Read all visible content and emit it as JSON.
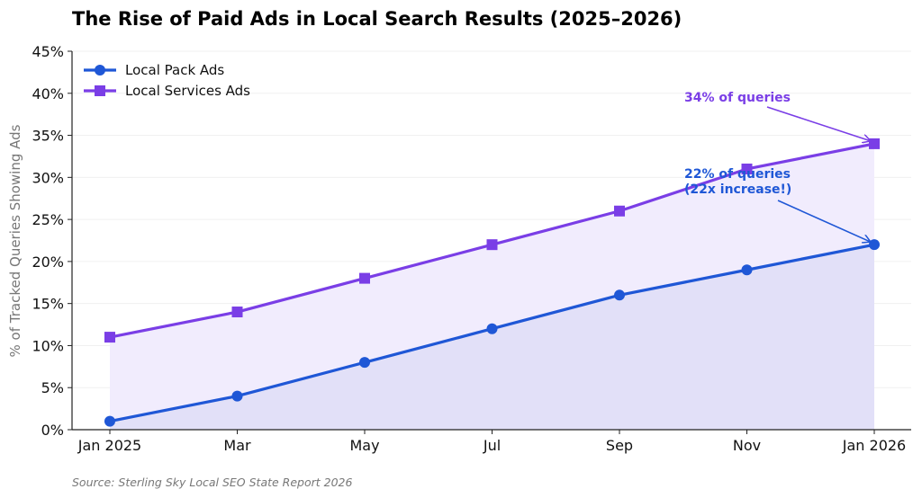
{
  "chart_data": {
    "type": "line",
    "title": "The Rise of Paid Ads in Local Search Results (2025–2026)",
    "ylabel": "% of Tracked Queries Showing Ads",
    "xlabel": "",
    "categories": [
      "Jan 2025",
      "Mar",
      "May",
      "Jul",
      "Sep",
      "Nov",
      "Jan 2026"
    ],
    "ylim": [
      0,
      45
    ],
    "yticks": [
      0,
      5,
      10,
      15,
      20,
      25,
      30,
      35,
      40,
      45
    ],
    "ytick_format": "%",
    "grid": "horizontal",
    "legend": "top-left",
    "series": [
      {
        "name": "Local Pack Ads",
        "values": [
          1,
          4,
          8,
          12,
          16,
          19,
          22
        ],
        "color": "#1f57d6",
        "marker": "circle",
        "fill": "#e2e0f8"
      },
      {
        "name": "Local Services Ads",
        "values": [
          11,
          14,
          18,
          22,
          26,
          31,
          34
        ],
        "color": "#7a3ee6",
        "marker": "square",
        "fill": "#f1ecfd"
      }
    ],
    "annotations": [
      {
        "text": "34% of queries",
        "series": 1,
        "point": 6,
        "color": "#7a3ee6"
      },
      {
        "text": "22% of queries\n(22x increase!)",
        "series": 0,
        "point": 6,
        "color": "#1f57d6"
      }
    ],
    "source": "Source: Sterling Sky Local SEO State Report 2026"
  }
}
